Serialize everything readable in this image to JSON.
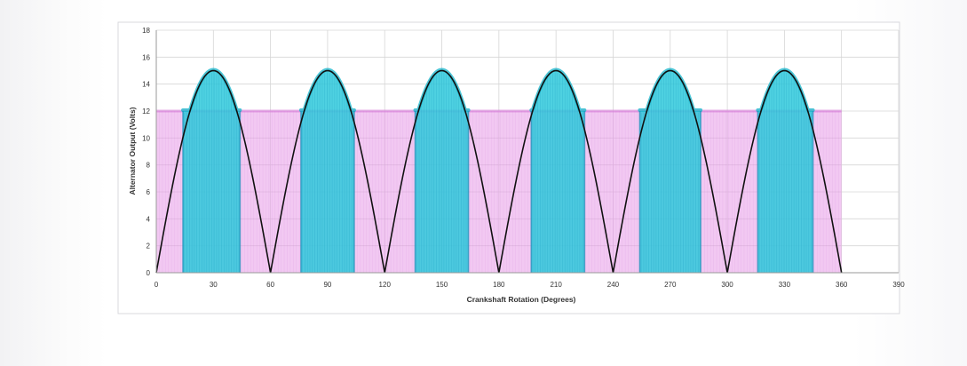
{
  "chart_data": {
    "type": "line",
    "title": "",
    "xlabel": "Crankshaft Rotation (Degrees)",
    "ylabel": "Alternator Output (Volts)",
    "xlim": [
      0,
      390
    ],
    "ylim": [
      0,
      18
    ],
    "x_ticks": [
      0,
      30,
      60,
      90,
      120,
      150,
      180,
      210,
      240,
      270,
      300,
      330,
      360,
      390
    ],
    "y_ticks": [
      0,
      2,
      4,
      6,
      8,
      10,
      12,
      14,
      16,
      18
    ],
    "grid": true,
    "series": [
      {
        "period_degrees": 60,
        "peak": 15,
        "x": [
          0,
          5,
          10,
          15,
          20,
          25,
          30,
          35,
          40,
          45,
          50,
          55,
          60,
          65,
          70,
          75,
          80,
          85,
          90,
          95,
          100,
          105,
          110,
          115,
          120,
          125,
          130,
          135,
          140,
          145,
          150,
          155,
          160,
          165,
          170,
          175,
          180,
          185,
          190,
          195,
          200,
          205,
          210,
          215,
          220,
          225,
          230,
          235,
          240,
          245,
          250,
          255,
          260,
          265,
          270,
          275,
          280,
          285,
          290,
          295,
          300,
          305,
          310,
          315,
          320,
          325,
          330,
          335,
          340,
          345,
          350,
          355,
          360
        ],
        "y": [
          0,
          3.9,
          7.5,
          10.6,
          13,
          14.5,
          15,
          14.5,
          13,
          10.6,
          7.5,
          3.9,
          0,
          3.9,
          7.5,
          10.6,
          13,
          14.5,
          15,
          14.5,
          13,
          10.6,
          7.5,
          3.9,
          0,
          3.9,
          7.5,
          10.6,
          13,
          14.5,
          15,
          14.5,
          13,
          10.6,
          7.5,
          3.9,
          0,
          3.9,
          7.5,
          10.6,
          13,
          14.5,
          15,
          14.5,
          13,
          10.6,
          7.5,
          3.9,
          0,
          3.9,
          7.5,
          10.6,
          13,
          14.5,
          15,
          14.5,
          13,
          10.6,
          7.5,
          3.9,
          0,
          3.9,
          7.5,
          10.6,
          13,
          14.5,
          15,
          14.5,
          13,
          10.6,
          7.5,
          3.9,
          0
        ],
        "color": "#111111"
      }
    ],
    "shaded_regions": [
      {
        "fill": "pink",
        "color": "#e79be8",
        "x_start": 0,
        "x_end": 360,
        "y_level": 12
      },
      {
        "fill": "cyan",
        "color": "#2fc9dc",
        "x_start": 14,
        "x_end": 44,
        "peak": 15
      },
      {
        "fill": "cyan",
        "color": "#2fc9dc",
        "x_start": 76,
        "x_end": 104,
        "peak": 15
      },
      {
        "fill": "cyan",
        "color": "#2fc9dc",
        "x_start": 136,
        "x_end": 164,
        "peak": 15
      },
      {
        "fill": "cyan",
        "color": "#2fc9dc",
        "x_start": 197,
        "x_end": 225,
        "peak": 15
      },
      {
        "fill": "cyan",
        "color": "#2fc9dc",
        "x_start": 254,
        "x_end": 286,
        "peak": 15
      },
      {
        "fill": "cyan",
        "color": "#2fc9dc",
        "x_start": 316,
        "x_end": 345,
        "peak": 15
      }
    ],
    "grid_color": "#d6d6d6",
    "plot_border_color": "#cfcfd4"
  }
}
